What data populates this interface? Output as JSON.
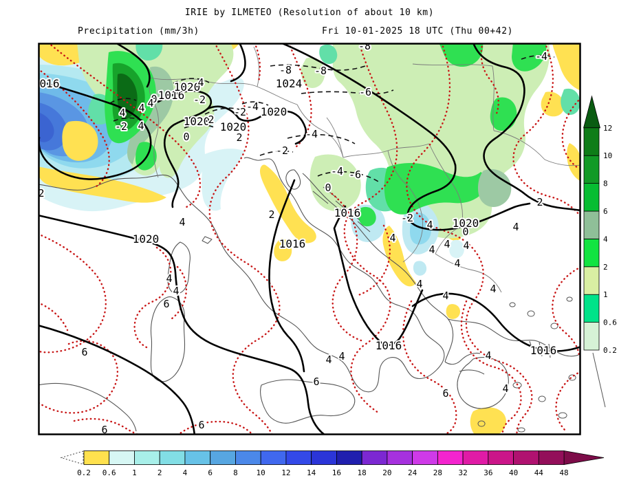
{
  "header": {
    "title": "IRIE by ILMETEO (Resolution of about 10 km)",
    "field_label": "Precipitation (mm/3h)",
    "valid_label": "Fri 10-01-2025 18 UTC (Thu 00+42)"
  },
  "map": {
    "contour_colors": {
      "isobar": "#000000",
      "temperature_dotted": "#c81616",
      "negative_dashed": "#111111",
      "coastline": "#555555",
      "country_border": "#7a7a7a"
    },
    "labels": [
      [
        "016",
        72,
        122,
        "iso"
      ],
      [
        "1016",
        249,
        139,
        "iso"
      ],
      [
        "1020",
        272,
        127,
        "iso"
      ],
      [
        "1020",
        286,
        177,
        "iso"
      ],
      [
        "1020",
        339,
        185,
        "iso"
      ],
      [
        "1020",
        398,
        163,
        "iso"
      ],
      [
        "1024",
        420,
        122,
        "iso"
      ],
      [
        "1020",
        212,
        348,
        "iso"
      ],
      [
        "1020",
        677,
        325,
        "iso"
      ],
      [
        "1016",
        505,
        310,
        "iso"
      ],
      [
        "1016",
        425,
        355,
        "iso"
      ],
      [
        "1016",
        565,
        503,
        "iso"
      ],
      [
        "1016",
        790,
        510,
        "iso"
      ],
      [
        "-2",
        290,
        145,
        "num"
      ],
      [
        "0",
        224,
        144,
        "num"
      ],
      [
        "4",
        206,
        157,
        "num"
      ],
      [
        "4",
        219,
        150,
        "num"
      ],
      [
        "4",
        178,
        164,
        "num"
      ],
      [
        "-2",
        176,
        184,
        "num"
      ],
      [
        "4",
        205,
        183,
        "num"
      ],
      [
        "0",
        271,
        199,
        "num"
      ],
      [
        "2",
        307,
        174,
        "num"
      ],
      [
        "-2",
        349,
        163,
        "num"
      ],
      [
        "-4",
        367,
        155,
        "num"
      ],
      [
        "-2",
        410,
        219,
        "num"
      ],
      [
        "-8",
        415,
        102,
        "num"
      ],
      [
        "-8",
        466,
        103,
        "num"
      ],
      [
        "-8",
        530,
        67,
        "num"
      ],
      [
        "-6",
        531,
        134,
        "num"
      ],
      [
        "-4",
        453,
        195,
        "num"
      ],
      [
        "-4",
        490,
        249,
        "num"
      ],
      [
        "-6",
        516,
        254,
        "num"
      ],
      [
        "-4",
        787,
        82,
        "num"
      ],
      [
        "0",
        477,
        273,
        "num"
      ],
      [
        "2",
        395,
        312,
        "num"
      ],
      [
        "2",
        60,
        281,
        "num"
      ],
      [
        "-2",
        592,
        317,
        "num"
      ],
      [
        "4",
        571,
        346,
        "num"
      ],
      [
        "4",
        628,
        363,
        "num"
      ],
      [
        "4",
        650,
        355,
        "num"
      ],
      [
        "2",
        785,
        294,
        "num"
      ],
      [
        "4",
        750,
        330,
        "num"
      ],
      [
        "4",
        625,
        327,
        "num"
      ],
      [
        "4",
        678,
        357,
        "num"
      ],
      [
        "4",
        665,
        383,
        "num"
      ],
      [
        "4",
        610,
        413,
        "num"
      ],
      [
        "4",
        648,
        430,
        "num"
      ],
      [
        "4",
        717,
        420,
        "num"
      ],
      [
        "4",
        710,
        517,
        "num"
      ],
      [
        "4",
        735,
        565,
        "num"
      ],
      [
        "6",
        648,
        572,
        "num"
      ],
      [
        "6",
        460,
        555,
        "num"
      ],
      [
        "4",
        478,
        523,
        "num"
      ],
      [
        "4",
        497,
        518,
        "num"
      ],
      [
        "4",
        265,
        323,
        "num"
      ],
      [
        "4",
        246,
        405,
        "num"
      ],
      [
        "4",
        256,
        423,
        "num"
      ],
      [
        "6",
        242,
        442,
        "num"
      ],
      [
        "6",
        123,
        512,
        "num"
      ],
      [
        "6",
        152,
        625,
        "num"
      ],
      [
        "6",
        293,
        618,
        "num"
      ],
      [
        "0",
        677,
        337,
        "num"
      ],
      [
        "4",
        292,
        120,
        "num"
      ],
      [
        "2",
        348,
        200,
        "num"
      ]
    ]
  },
  "right_scale": {
    "tick_labels_bottom_to_top": [
      "0.2",
      "0.6",
      "1",
      "2",
      "4",
      "6",
      "8",
      "10",
      "12"
    ],
    "cell_colors_bottom_to_top": [
      "#d6f2d6",
      "#00e389",
      "#d9efa3",
      "#12e441",
      "#8fbf98",
      "#07bd32",
      "#129a26",
      "#0e7d18"
    ],
    "arrow_color": "#0a5c12"
  },
  "bottom_scale": {
    "tick_labels": [
      "0.2",
      "0.6",
      "1",
      "2",
      "4",
      "6",
      "8",
      "10",
      "12",
      "14",
      "16",
      "18",
      "20",
      "24",
      "28",
      "32",
      "36",
      "40",
      "44",
      "48"
    ],
    "cell_colors": [
      "#ffe14e",
      "#d7f7f4",
      "#a8efe9",
      "#82dee5",
      "#67c2e7",
      "#57a6e1",
      "#4b88e9",
      "#4068ee",
      "#3349e8",
      "#2b35d8",
      "#201fae",
      "#7c28d2",
      "#a631de",
      "#cf3ae8",
      "#f424cf",
      "#e01ba6",
      "#cb1689",
      "#b01270",
      "#930f5a"
    ],
    "arrow_color": "#7d0c49"
  }
}
